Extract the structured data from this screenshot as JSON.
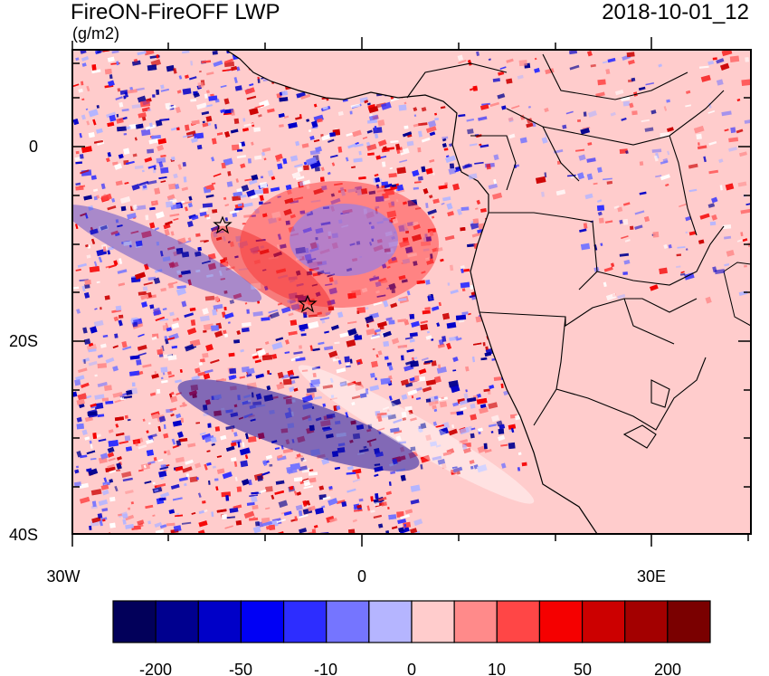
{
  "header": {
    "title": "FireON-FireOFF LWP",
    "units": "(g/m2)",
    "timestamp": "2018-10-01_12"
  },
  "axes": {
    "lat_labels": [
      "0",
      "20S",
      "40S"
    ],
    "lon_labels": [
      "30W",
      "0",
      "30E"
    ]
  },
  "colorbar": {
    "labels": [
      "-200",
      "-50",
      "-10",
      "0",
      "10",
      "50",
      "200"
    ],
    "colors": [
      "#02005a",
      "#00008f",
      "#0000c8",
      "#0000f5",
      "#2d2dff",
      "#7575ff",
      "#b5b5ff",
      "#ffcccc",
      "#ff8a8a",
      "#ff4646",
      "#f50000",
      "#cc0000",
      "#a30000",
      "#7a0000"
    ]
  },
  "map_colors": {
    "ocean_base": "#ffcccc",
    "land": "#ffcccc",
    "positive": "#ff2020",
    "negative": "#2020ff"
  },
  "markers": [
    {
      "name": "star-marker",
      "lon": -15,
      "lat": -8
    },
    {
      "name": "star-marker",
      "lon": -6,
      "lat": -16
    }
  ]
}
